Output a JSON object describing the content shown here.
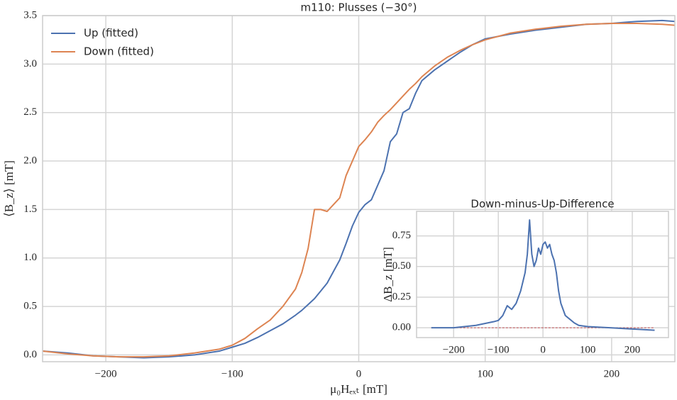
{
  "chart_data": [
    {
      "type": "line",
      "title": "m110: Plusses (−30°)",
      "x_label": "μ₀Hₑₓₜ [mT]",
      "y_label": "⟨B_z⟩ [mT]",
      "x": [
        -250,
        -230,
        -210,
        -190,
        -170,
        -150,
        -130,
        -110,
        -100,
        -90,
        -80,
        -70,
        -60,
        -50,
        -45,
        -40,
        -35,
        -30,
        -25,
        -20,
        -15,
        -10,
        -5,
        0,
        5,
        10,
        15,
        20,
        25,
        30,
        35,
        40,
        45,
        50,
        60,
        70,
        80,
        90,
        100,
        120,
        140,
        160,
        180,
        200,
        220,
        240,
        250
      ],
      "series": [
        {
          "name": "Up (fitted)",
          "color": "#4c72b0",
          "values": [
            0.04,
            0.02,
            -0.01,
            -0.02,
            -0.03,
            -0.02,
            0,
            0.04,
            0.08,
            0.12,
            0.18,
            0.25,
            0.32,
            0.41,
            0.46,
            0.52,
            0.58,
            0.66,
            0.74,
            0.86,
            0.98,
            1.15,
            1.33,
            1.47,
            1.55,
            1.6,
            1.75,
            1.9,
            2.2,
            2.28,
            2.5,
            2.54,
            2.7,
            2.83,
            2.94,
            3.03,
            3.12,
            3.2,
            3.26,
            3.31,
            3.35,
            3.38,
            3.41,
            3.42,
            3.44,
            3.45,
            3.44
          ]
        },
        {
          "name": "Down (fitted)",
          "color": "#dd8452",
          "values": [
            0.04,
            0.01,
            -0.01,
            -0.02,
            -0.02,
            -0.01,
            0.02,
            0.06,
            0.1,
            0.17,
            0.27,
            0.36,
            0.5,
            0.68,
            0.85,
            1.1,
            1.5,
            1.5,
            1.48,
            1.55,
            1.62,
            1.85,
            2.0,
            2.15,
            2.22,
            2.3,
            2.4,
            2.47,
            2.53,
            2.6,
            2.67,
            2.74,
            2.8,
            2.87,
            2.98,
            3.07,
            3.14,
            3.2,
            3.25,
            3.32,
            3.36,
            3.39,
            3.41,
            3.42,
            3.42,
            3.41,
            3.4
          ]
        }
      ],
      "xlim": [
        -250,
        250
      ],
      "ylim": [
        -0.07,
        3.5
      ],
      "xticks": [
        {
          "value": -200,
          "label": "−200"
        },
        {
          "value": -100,
          "label": "−100"
        },
        0,
        100,
        200
      ],
      "yticks": [
        {
          "value": 0,
          "label": "0.0"
        },
        {
          "value": 0.5,
          "label": "0.5"
        },
        {
          "value": 1,
          "label": "1.0"
        },
        {
          "value": 1.5,
          "label": "1.5"
        },
        {
          "value": 2,
          "label": "2.0"
        },
        {
          "value": 2.5,
          "label": "2.5"
        },
        {
          "value": 3,
          "label": "3.0"
        },
        {
          "value": 3.5,
          "label": "3.5"
        }
      ],
      "grid": true,
      "legend": "upper left"
    },
    {
      "type": "line",
      "title": "Down-minus-Up-Difference",
      "y_label": "ΔB_z [mT]",
      "x": [
        -250,
        -200,
        -150,
        -110,
        -100,
        -90,
        -80,
        -70,
        -60,
        -50,
        -40,
        -35,
        -30,
        -25,
        -20,
        -15,
        -10,
        -5,
        0,
        5,
        10,
        15,
        20,
        25,
        30,
        35,
        40,
        50,
        60,
        70,
        80,
        100,
        150,
        200,
        250
      ],
      "series": [
        {
          "color": "#4c72b0",
          "values": [
            0.0,
            0.0,
            0.02,
            0.05,
            0.06,
            0.1,
            0.18,
            0.15,
            0.2,
            0.3,
            0.45,
            0.6,
            0.88,
            0.6,
            0.5,
            0.55,
            0.65,
            0.6,
            0.68,
            0.7,
            0.65,
            0.68,
            0.6,
            0.55,
            0.45,
            0.3,
            0.2,
            0.1,
            0.07,
            0.04,
            0.02,
            0.01,
            0.0,
            -0.01,
            -0.02
          ]
        }
      ],
      "xlim": [
        -283,
        281
      ],
      "ylim": [
        -0.08,
        0.95
      ],
      "xticks": [
        {
          "value": -200,
          "label": "−200"
        },
        {
          "value": -100,
          "label": "−100"
        },
        0,
        100,
        200
      ],
      "yticks": [
        {
          "value": 0,
          "label": "0.00"
        },
        {
          "value": 0.25,
          "label": "0.25"
        },
        {
          "value": 0.5,
          "label": "0.50"
        },
        {
          "value": 0.75,
          "label": "0.75"
        }
      ],
      "grid": true,
      "reference_line": {
        "value": 0,
        "color": "#c44e52"
      }
    }
  ]
}
